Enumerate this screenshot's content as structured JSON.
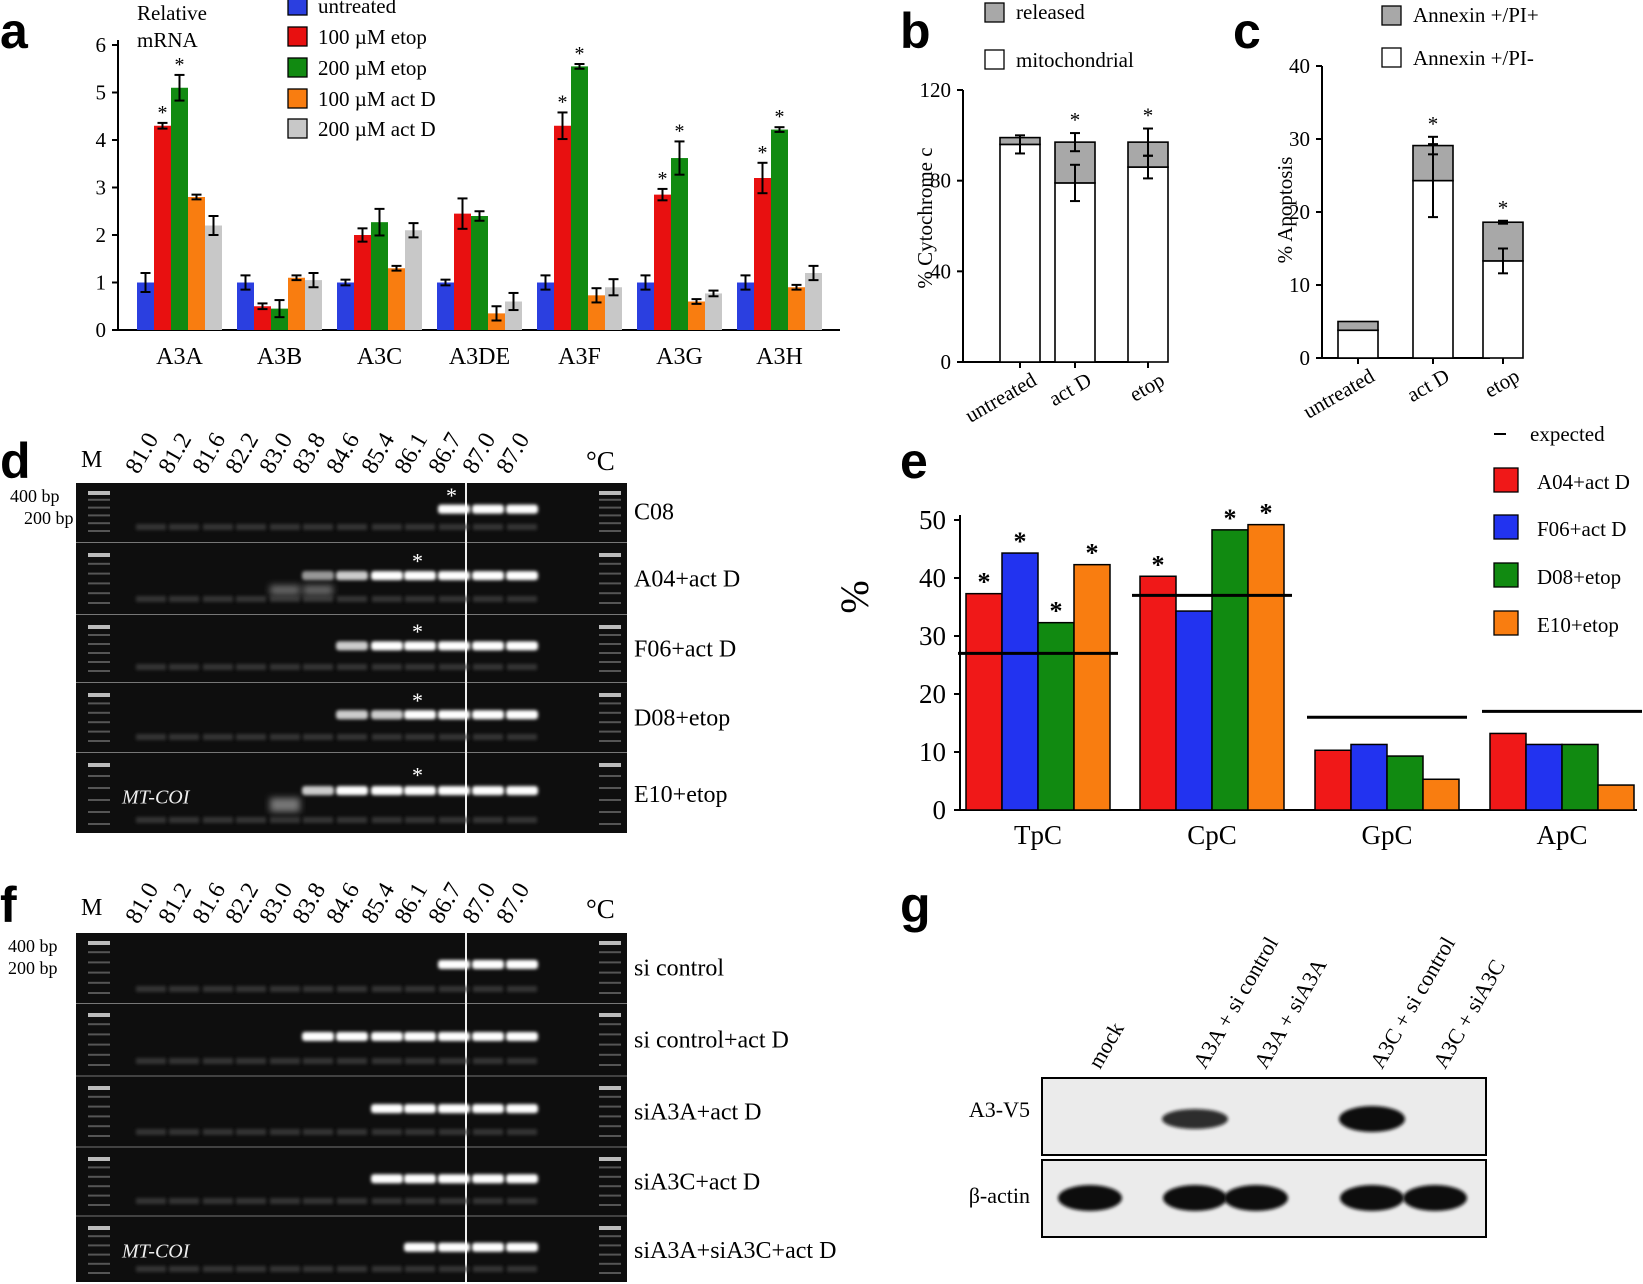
{
  "panels": {
    "a": "a",
    "b": "b",
    "c": "c",
    "d": "d",
    "e": "e",
    "f": "f",
    "g": "g"
  },
  "colors": {
    "untreated": "#2b3fe0",
    "etop100": "#e81010",
    "etop200": "#118a11",
    "actD100": "#f97d10",
    "actD200": "#c8c8c8",
    "released": "#a8a8a8",
    "mitochondrial": "#ffffff",
    "A04": "#f01818",
    "F06": "#2233f0",
    "D08": "#118a11",
    "E10": "#f97d10"
  },
  "panel_a": {
    "ylabel_lines": [
      "Relative",
      "mRNA"
    ],
    "legend": [
      "untreated",
      "100 µM etop",
      "200 µM etop",
      "100 µM act D",
      "200 µM act D"
    ]
  },
  "panel_b": {
    "legend": [
      "released",
      "mitochondrial"
    ],
    "ylabel": "% Cytochrome c"
  },
  "panel_c": {
    "legend": [
      "Annexin +/PI+",
      "Annexin +/PI-"
    ],
    "ylabel": "% Apoptosis"
  },
  "panel_d": {
    "marker": "M",
    "unit": "°C",
    "temps": [
      "81.0",
      "81.2",
      "81.6",
      "82.2",
      "83.0",
      "83.8",
      "84.6",
      "85.4",
      "86.1",
      "86.7",
      "87.0",
      "87.0"
    ],
    "size_labels": [
      "400 bp",
      "200 bp"
    ],
    "rows": [
      "C08",
      "A04+act D",
      "F06+act D",
      "D08+etop",
      "E10+etop"
    ],
    "gene": "MT-COI"
  },
  "panel_e": {
    "ylabel": "%",
    "expected_label": "expected"
  },
  "panel_f": {
    "marker": "M",
    "unit": "°C",
    "temps": [
      "81.0",
      "81.2",
      "81.6",
      "82.2",
      "83.0",
      "83.8",
      "84.6",
      "85.4",
      "86.1",
      "86.7",
      "87.0",
      "87.0"
    ],
    "size_labels": [
      "400 bp",
      "200 bp"
    ],
    "rows": [
      "si control",
      "si control+act D",
      "siA3A+act D",
      "siA3C+act D",
      "siA3A+siA3C+act D"
    ],
    "gene": "MT-COI"
  },
  "panel_g": {
    "lanes": [
      "mock",
      "A3A + si control",
      "A3A + siA3A",
      "A3C + si control",
      "A3C + siA3C"
    ],
    "row_labels": [
      "A3-V5",
      "β-actin"
    ]
  },
  "chart_data": [
    {
      "type": "bar",
      "panel": "a",
      "categories": [
        "A3A",
        "A3B",
        "A3C",
        "A3DE",
        "A3F",
        "A3G",
        "A3H"
      ],
      "ylim": [
        0,
        6
      ],
      "yticks": [
        0,
        1,
        2,
        3,
        4,
        5,
        6
      ],
      "series": [
        {
          "name": "untreated",
          "values": [
            1,
            1,
            1,
            1,
            1,
            1,
            1
          ],
          "errors": [
            0.2,
            0.15,
            0.06,
            0.06,
            0.15,
            0.15,
            0.15
          ],
          "star": [
            false,
            false,
            false,
            false,
            false,
            false,
            false
          ]
        },
        {
          "name": "100 µM etop",
          "values": [
            4.3,
            0.5,
            2.0,
            2.45,
            4.3,
            2.85,
            3.2
          ],
          "errors": [
            0.06,
            0.06,
            0.14,
            0.32,
            0.28,
            0.12,
            0.32
          ],
          "star": [
            true,
            false,
            false,
            false,
            true,
            true,
            true
          ]
        },
        {
          "name": "200 µM etop",
          "values": [
            5.1,
            0.45,
            2.27,
            2.4,
            5.55,
            3.62,
            4.22
          ],
          "errors": [
            0.27,
            0.18,
            0.28,
            0.1,
            0.05,
            0.35,
            0.05
          ],
          "star": [
            true,
            false,
            false,
            false,
            true,
            true,
            true
          ]
        },
        {
          "name": "100 µM act D",
          "values": [
            2.8,
            1.1,
            1.3,
            0.35,
            0.73,
            0.6,
            0.9
          ],
          "errors": [
            0.05,
            0.05,
            0.05,
            0.15,
            0.15,
            0.05,
            0.05
          ],
          "star": [
            false,
            false,
            false,
            false,
            false,
            false,
            false
          ]
        },
        {
          "name": "200 µM act D",
          "values": [
            2.2,
            1.05,
            2.1,
            0.6,
            0.9,
            0.77,
            1.2
          ],
          "errors": [
            0.2,
            0.15,
            0.15,
            0.18,
            0.17,
            0.06,
            0.15
          ],
          "star": [
            false,
            false,
            false,
            false,
            false,
            false,
            false
          ]
        }
      ]
    },
    {
      "type": "bar",
      "stacked": true,
      "panel": "b",
      "categories": [
        "untreated",
        "act D",
        "etop"
      ],
      "ylim": [
        0,
        120
      ],
      "yticks": [
        0,
        40,
        80,
        120
      ],
      "series": [
        {
          "name": "mitochondrial",
          "values": [
            96,
            79,
            86
          ],
          "errors": [
            4,
            8,
            5
          ]
        },
        {
          "name": "released",
          "values": [
            3,
            18,
            11
          ],
          "errors": [
            0,
            4,
            6
          ]
        }
      ],
      "star": [
        false,
        true,
        true
      ]
    },
    {
      "type": "bar",
      "stacked": true,
      "panel": "c",
      "categories": [
        "untreated",
        "act D",
        "etop"
      ],
      "ylim": [
        0,
        40
      ],
      "yticks": [
        0,
        10,
        20,
        30,
        40
      ],
      "series": [
        {
          "name": "Annexin +/PI-",
          "values": [
            3.8,
            24.3,
            13.3
          ],
          "errors": [
            0,
            5,
            1.7
          ]
        },
        {
          "name": "Annexin +/PI+",
          "values": [
            1.2,
            4.8,
            5.3
          ],
          "errors": [
            0,
            1.2,
            0.2
          ]
        }
      ],
      "star": [
        false,
        true,
        true
      ]
    },
    {
      "type": "bar",
      "panel": "e",
      "categories": [
        "TpC",
        "CpC",
        "GpC",
        "ApC"
      ],
      "ylim": [
        0,
        50
      ],
      "yticks": [
        0,
        10,
        20,
        30,
        40,
        50
      ],
      "series": [
        {
          "name": "A04+act D",
          "values": [
            37.3,
            40.3,
            10.3,
            13.2
          ],
          "star": [
            true,
            true,
            false,
            false
          ]
        },
        {
          "name": "F06+act D",
          "values": [
            44.3,
            34.3,
            11.3,
            11.3
          ],
          "star": [
            true,
            false,
            false,
            false
          ]
        },
        {
          "name": "D08+etop",
          "values": [
            32.3,
            48.3,
            9.3,
            11.3
          ],
          "star": [
            true,
            true,
            false,
            false
          ]
        },
        {
          "name": "E10+etop",
          "values": [
            42.3,
            49.2,
            5.3,
            4.3
          ],
          "star": [
            true,
            true,
            false,
            false
          ]
        }
      ],
      "expected": [
        27,
        37,
        16,
        17
      ]
    }
  ]
}
